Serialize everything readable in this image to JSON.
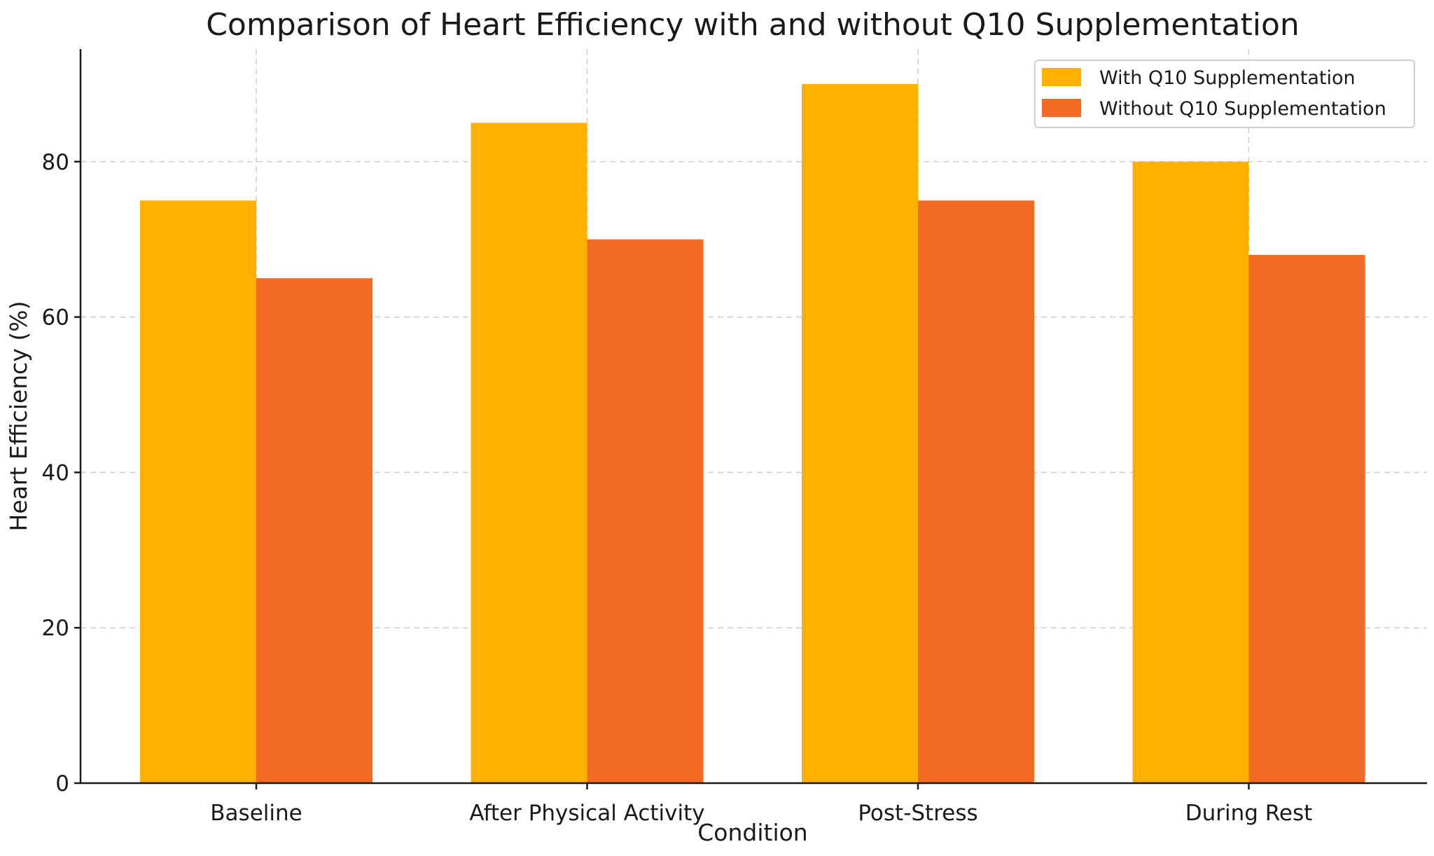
{
  "chart_data": {
    "type": "bar",
    "title": "Comparison of Heart Efficiency with and without Q10 Supplementation",
    "xlabel": "Condition",
    "ylabel": "Heart Efficiency (%)",
    "categories": [
      "Baseline",
      "After Physical Activity",
      "Post-Stress",
      "During Rest"
    ],
    "series": [
      {
        "name": "With Q10 Supplementation",
        "color": "#FFB000",
        "values": [
          75,
          85,
          90,
          80
        ]
      },
      {
        "name": "Without Q10 Supplementation",
        "color": "#F26B24",
        "values": [
          65,
          70,
          75,
          68
        ]
      }
    ],
    "ylim": [
      0,
      94.5
    ],
    "yticks": [
      0,
      20,
      40,
      60,
      80
    ],
    "yticks_labels": [
      "0",
      "20",
      "40",
      "60",
      "80"
    ],
    "grid": true,
    "legend_position": "top-right"
  }
}
